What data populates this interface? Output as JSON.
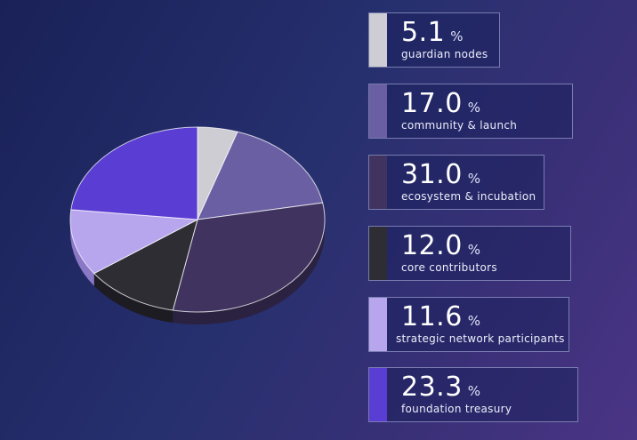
{
  "chart_data": {
    "type": "pie",
    "unit": "%",
    "slices": [
      {
        "label": "guardian nodes",
        "value": 5.1,
        "color": "#cdcdd3",
        "side_color": "#8e8e98"
      },
      {
        "label": "community & launch",
        "value": 17.0,
        "color": "#6a5fa3",
        "side_color": "#443b72"
      },
      {
        "label": "ecosystem & incubation",
        "value": 31.0,
        "color": "#40335f",
        "side_color": "#2a2240"
      },
      {
        "label": "core contributors",
        "value": 12.0,
        "color": "#2d2d33",
        "side_color": "#1c1c22"
      },
      {
        "label": "strategic network participants",
        "value": 11.6,
        "color": "#b7a6ee",
        "side_color": "#8a78c6"
      },
      {
        "label": "foundation treasury",
        "value": 23.3,
        "color": "#5a3dd2",
        "side_color": "#3e2799"
      }
    ]
  }
}
